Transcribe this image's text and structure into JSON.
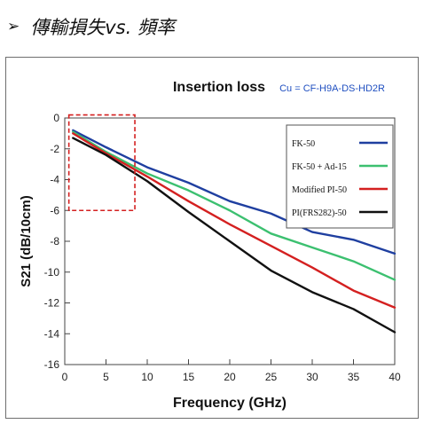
{
  "heading": {
    "bullet": "➢",
    "text": "傳輸損失vs. 頻率"
  },
  "chart_data": {
    "type": "line",
    "title": "Insertion loss",
    "subtitle": "Cu = CF-H9A-DS-HD2R",
    "xlabel": "Frequency (GHz)",
    "ylabel": "S21 (dB/10cm)",
    "xlim": [
      0,
      40
    ],
    "ylim": [
      -16,
      0
    ],
    "xticks": [
      0,
      5,
      10,
      15,
      20,
      25,
      30,
      35,
      40
    ],
    "yticks": [
      0,
      -2,
      -4,
      -6,
      -8,
      -10,
      -12,
      -14,
      -16
    ],
    "grid": false,
    "legend_position": "top-right",
    "highlight_box": {
      "x": [
        0.5,
        8.5
      ],
      "y": [
        -6.0,
        0.2
      ]
    },
    "series": [
      {
        "name": "FK-50",
        "color": "#1f3fa0",
        "x": [
          1,
          5,
          10,
          15,
          20,
          25,
          30,
          35,
          40
        ],
        "y": [
          -0.8,
          -1.9,
          -3.2,
          -4.2,
          -5.4,
          -6.2,
          -7.4,
          -7.9,
          -8.8
        ]
      },
      {
        "name": "FK-50 + Ad-15",
        "color": "#3cc070",
        "x": [
          1,
          5,
          10,
          15,
          20,
          25,
          30,
          35,
          40
        ],
        "y": [
          -0.9,
          -2.2,
          -3.6,
          -4.7,
          -6.0,
          -7.5,
          -8.4,
          -9.3,
          -10.5
        ]
      },
      {
        "name": "Modified PI-50",
        "color": "#d42020",
        "x": [
          1,
          5,
          10,
          15,
          20,
          25,
          30,
          35,
          40
        ],
        "y": [
          -1.0,
          -2.3,
          -3.8,
          -5.4,
          -6.9,
          -8.3,
          -9.7,
          -11.2,
          -12.3
        ]
      },
      {
        "name": "PI(FRS282)-50",
        "color": "#111111",
        "x": [
          1,
          5,
          10,
          15,
          20,
          25,
          30,
          35,
          40
        ],
        "y": [
          -1.3,
          -2.4,
          -4.1,
          -6.1,
          -8.0,
          -9.9,
          -11.3,
          -12.4,
          -13.9
        ]
      }
    ]
  }
}
